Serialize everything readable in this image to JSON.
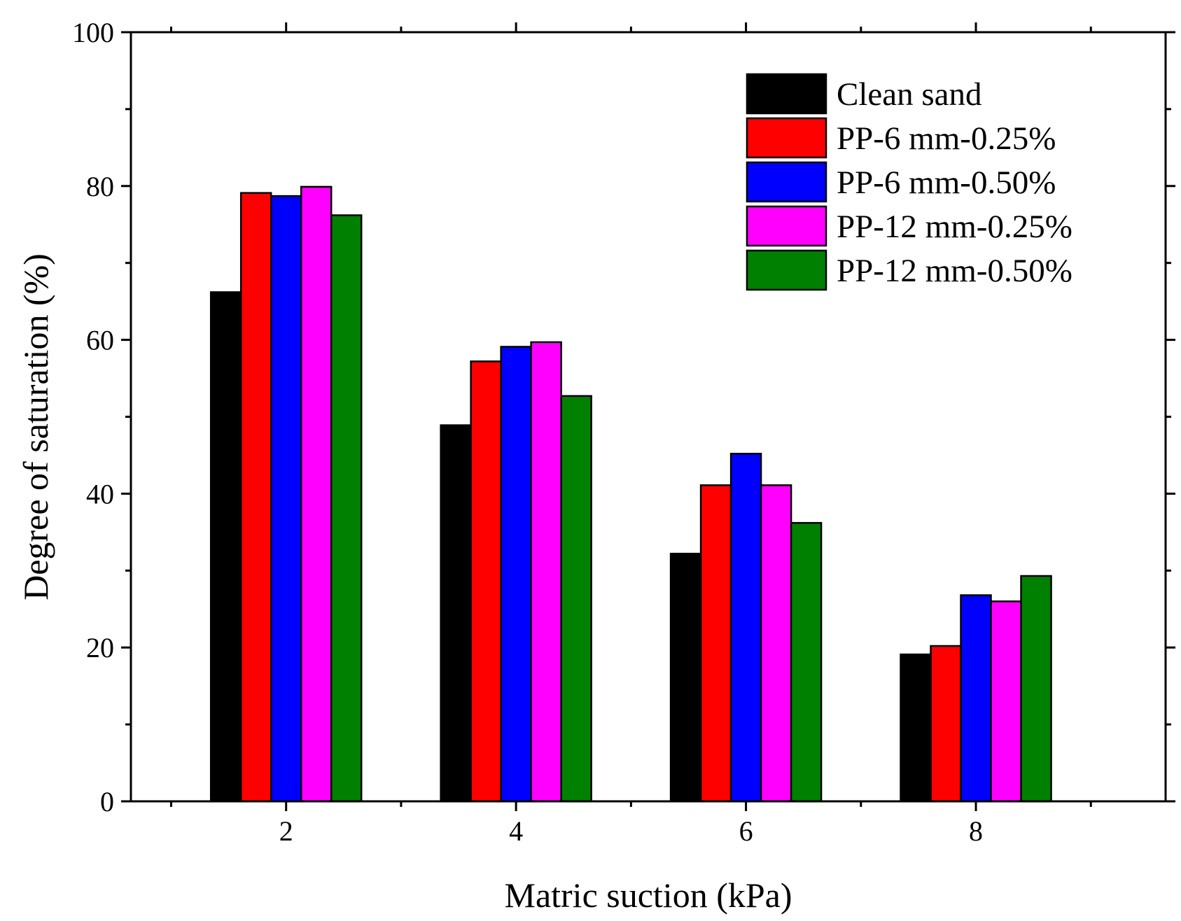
{
  "chart_data": {
    "type": "bar",
    "title": "",
    "xlabel": "Matric suction (kPa)",
    "ylabel": "Degree of saturation (%)",
    "categories": [
      "2",
      "4",
      "6",
      "8"
    ],
    "ylim": [
      0,
      100
    ],
    "yticks": [
      "0",
      "20",
      "40",
      "60",
      "80",
      "100"
    ],
    "grid": false,
    "legend_position": "top-right",
    "series": [
      {
        "name": "Clean sand",
        "color": "#000000",
        "values": [
          66.2,
          48.9,
          32.2,
          19.1
        ]
      },
      {
        "name": "PP-6 mm-0.25%",
        "color": "#ff0000",
        "values": [
          79.1,
          57.2,
          41.1,
          20.2
        ]
      },
      {
        "name": "PP-6 mm-0.50%",
        "color": "#0000ff",
        "values": [
          78.7,
          59.1,
          45.2,
          26.8
        ]
      },
      {
        "name": "PP-12 mm-0.25%",
        "color": "#ff00ff",
        "values": [
          79.9,
          59.7,
          41.1,
          26.0
        ]
      },
      {
        "name": "PP-12 mm-0.50%",
        "color": "#008000",
        "values": [
          76.2,
          52.7,
          36.2,
          29.3
        ]
      }
    ]
  }
}
